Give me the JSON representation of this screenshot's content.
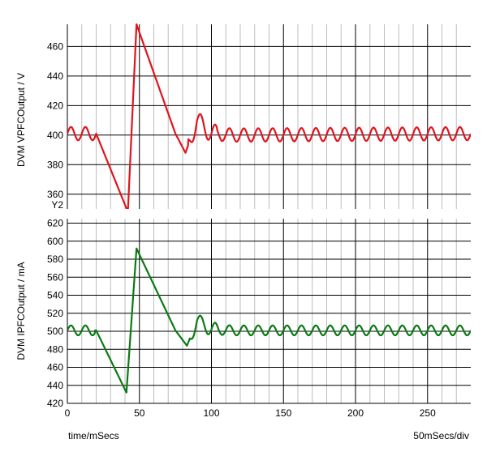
{
  "chart_data": [
    {
      "type": "line",
      "ylabel": "DVM VPFCOutput / V",
      "corner_label": "Y2",
      "ylim": [
        350,
        475
      ],
      "yticks": [
        360,
        380,
        400,
        420,
        440,
        460
      ],
      "xlim": [
        0,
        280
      ],
      "grid": true,
      "series": [
        {
          "color": "#e0141e",
          "ripple_amplitude": 4.5,
          "ripple_period_ms": 10,
          "x": [
            0,
            20,
            42,
            48,
            75,
            82,
            90,
            100,
            115,
            280
          ],
          "y": [
            401,
            401,
            348,
            475,
            401,
            388,
            410,
            401,
            400,
            401
          ]
        }
      ]
    },
    {
      "type": "line",
      "ylabel": "DVM IPFCOutput / mA",
      "ylim": [
        420,
        625
      ],
      "yticks": [
        420,
        440,
        460,
        480,
        500,
        520,
        540,
        560,
        580,
        600,
        620
      ],
      "xlim": [
        0,
        280
      ],
      "xticks": [
        0,
        50,
        100,
        150,
        200,
        250
      ],
      "xlabel": "time/mSecs",
      "x_scale_note": "50mSecs/div",
      "grid": true,
      "series": [
        {
          "color": "#0a7a14",
          "ripple_amplitude": 5.5,
          "ripple_period_ms": 10,
          "x": [
            0,
            20,
            41,
            48,
            75,
            83,
            90,
            100,
            115,
            280
          ],
          "y": [
            501,
            501,
            432,
            592,
            501,
            484,
            512,
            502,
            501,
            501
          ]
        }
      ]
    }
  ]
}
